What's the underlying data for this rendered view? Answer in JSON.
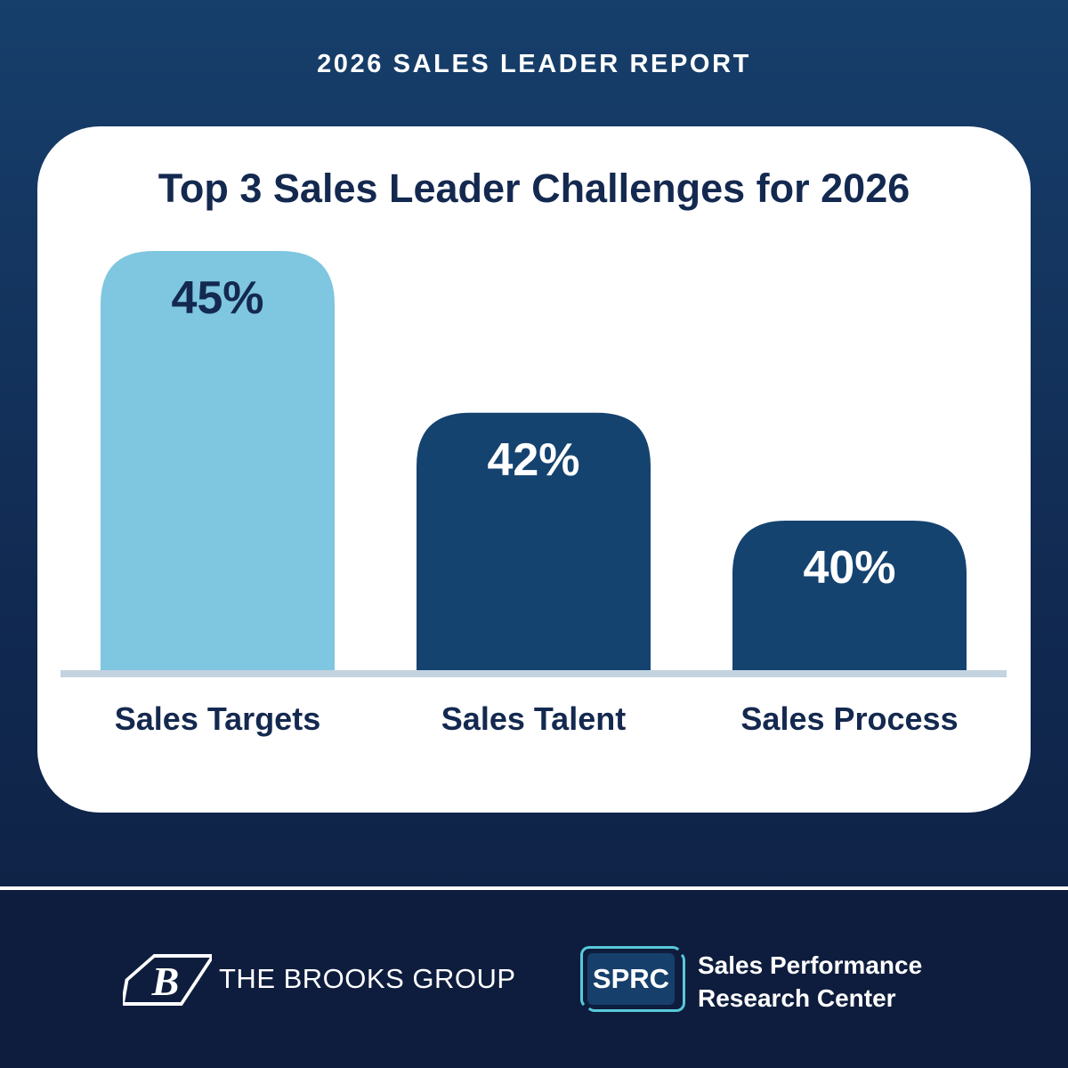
{
  "header": {
    "title": "2026 SALES LEADER REPORT"
  },
  "colors": {
    "highlight_bar": "#7fc6e0",
    "standard_bar": "#144370",
    "baseline": "#c3d3e0",
    "dark_text": "#14294f",
    "light_text": "#ffffff"
  },
  "chart_data": {
    "type": "bar",
    "title": "Top 3 Sales Leader Challenges for 2026",
    "categories": [
      "Sales Targets",
      "Sales Talent",
      "Sales Process"
    ],
    "values": [
      45,
      42,
      40
    ],
    "value_labels": [
      "45%",
      "42%",
      "40%"
    ],
    "unit": "%",
    "highlight_index": 0,
    "xlabel": "",
    "ylabel": "",
    "grid": false,
    "legend": "none"
  },
  "footer": {
    "brooks": {
      "name": "THE BROOKS GROUP",
      "icon": "brooks-b-logo-icon"
    },
    "sprc": {
      "badge": "SPRC",
      "line1": "Sales Performance",
      "line2": "Research Center"
    }
  }
}
